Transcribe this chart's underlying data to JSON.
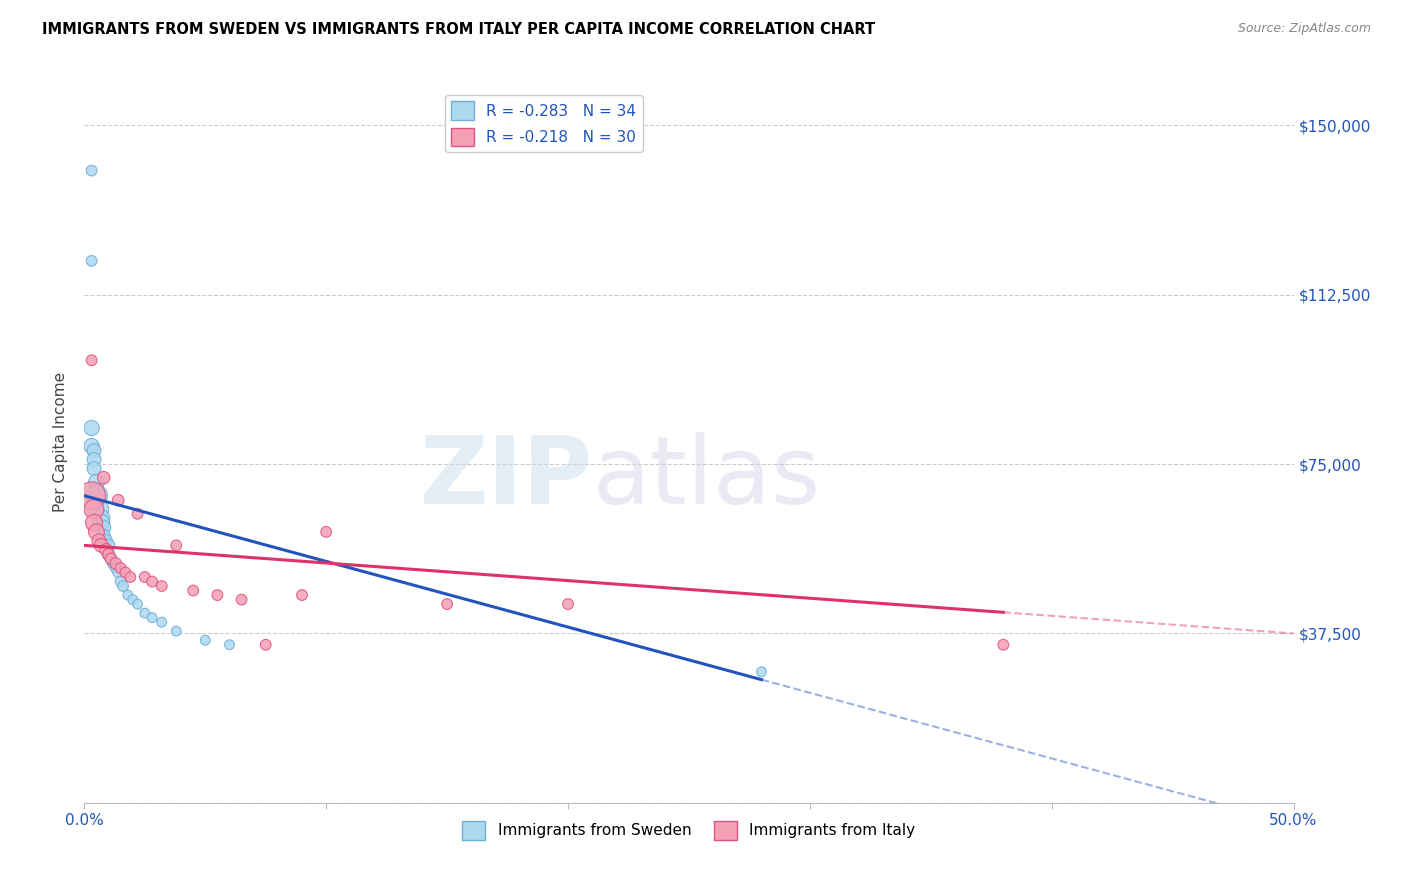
{
  "title": "IMMIGRANTS FROM SWEDEN VS IMMIGRANTS FROM ITALY PER CAPITA INCOME CORRELATION CHART",
  "source": "Source: ZipAtlas.com",
  "ylabel": "Per Capita Income",
  "xlim": [
    0.0,
    0.5
  ],
  "ylim": [
    0,
    160000
  ],
  "ytick_labels_right": [
    "$150,000",
    "$112,500",
    "$75,000",
    "$37,500"
  ],
  "ytick_vals_right": [
    150000,
    112500,
    75000,
    37500
  ],
  "legend_sweden": "R = -0.283   N = 34",
  "legend_italy": "R = -0.218   N = 30",
  "sweden_color": "#add8f0",
  "italy_color": "#f4a0b5",
  "sweden_edge_color": "#6baed6",
  "italy_edge_color": "#e05080",
  "trendline_sweden_color": "#2255bb",
  "trendline_italy_color": "#dd3366",
  "watermark_zip": "ZIP",
  "watermark_atlas": "atlas",
  "bottom_legend_sweden": "Immigrants from Sweden",
  "bottom_legend_italy": "Immigrants from Italy",
  "sweden_x": [
    0.003,
    0.003,
    0.004,
    0.004,
    0.004,
    0.005,
    0.005,
    0.005,
    0.006,
    0.007,
    0.007,
    0.008,
    0.008,
    0.009,
    0.01,
    0.01,
    0.011,
    0.012,
    0.013,
    0.014,
    0.015,
    0.016,
    0.018,
    0.02,
    0.022,
    0.025,
    0.028,
    0.032,
    0.038,
    0.05,
    0.06,
    0.003,
    0.003,
    0.28
  ],
  "sweden_y": [
    83000,
    79000,
    78000,
    76000,
    74000,
    71000,
    69000,
    68000,
    65000,
    63000,
    62000,
    61000,
    59000,
    58000,
    57000,
    55000,
    54000,
    53000,
    52000,
    51000,
    49000,
    48000,
    46000,
    45000,
    44000,
    42000,
    41000,
    40000,
    38000,
    36000,
    35000,
    140000,
    120000,
    29000
  ],
  "sweden_size": [
    120,
    120,
    100,
    100,
    100,
    130,
    130,
    250,
    200,
    150,
    150,
    100,
    100,
    80,
    80,
    80,
    70,
    70,
    60,
    60,
    60,
    60,
    50,
    50,
    50,
    50,
    50,
    50,
    50,
    50,
    50,
    60,
    60,
    50
  ],
  "italy_x": [
    0.003,
    0.004,
    0.004,
    0.005,
    0.006,
    0.007,
    0.008,
    0.009,
    0.01,
    0.011,
    0.013,
    0.014,
    0.015,
    0.017,
    0.019,
    0.022,
    0.025,
    0.028,
    0.032,
    0.038,
    0.045,
    0.055,
    0.065,
    0.075,
    0.09,
    0.1,
    0.15,
    0.2,
    0.38,
    0.003
  ],
  "italy_y": [
    68000,
    65000,
    62000,
    60000,
    58000,
    57000,
    72000,
    56000,
    55000,
    54000,
    53000,
    67000,
    52000,
    51000,
    50000,
    64000,
    50000,
    49000,
    48000,
    57000,
    47000,
    46000,
    45000,
    35000,
    46000,
    60000,
    44000,
    44000,
    35000,
    98000
  ],
  "italy_size": [
    400,
    200,
    150,
    130,
    100,
    100,
    80,
    80,
    70,
    70,
    70,
    70,
    60,
    60,
    60,
    60,
    60,
    60,
    60,
    60,
    60,
    60,
    60,
    60,
    60,
    60,
    60,
    60,
    60,
    60
  ],
  "trendline_sweden_x0": 0.0,
  "trendline_sweden_y0": 68000,
  "trendline_sweden_x1": 0.33,
  "trendline_sweden_y1": 20000,
  "trendline_sweden_solid_end": 0.28,
  "trendline_italy_x0": 0.0,
  "trendline_italy_y0": 57000,
  "trendline_italy_x1": 0.5,
  "trendline_italy_y1": 37500,
  "trendline_italy_solid_end": 0.38
}
